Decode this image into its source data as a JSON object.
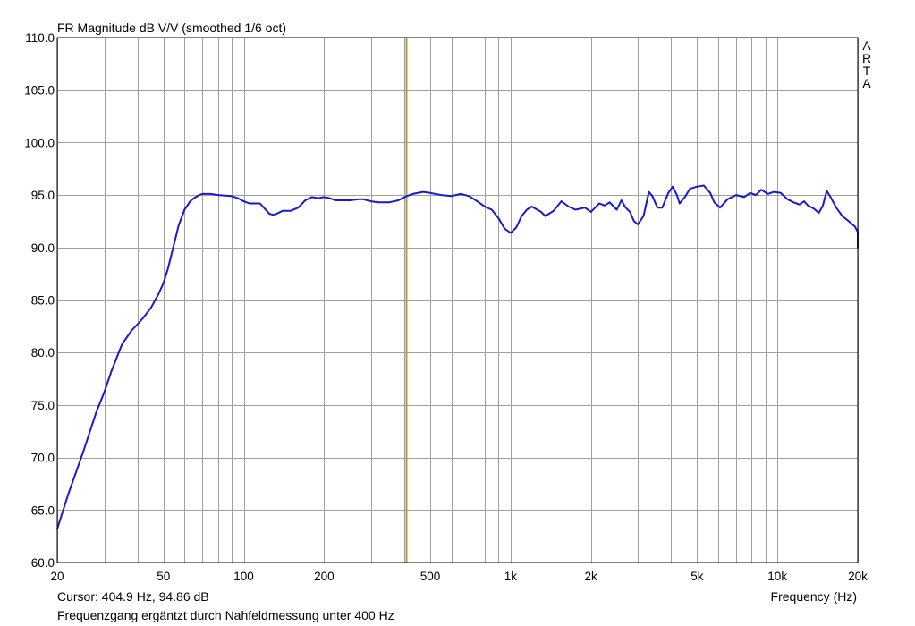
{
  "chart_data": {
    "type": "line",
    "title": "FR Magnitude dB V/V (smoothed 1/6 oct)",
    "xlabel": "Frequency (Hz)",
    "ylabel": "",
    "watermark": "ARTA",
    "x_scale": "log",
    "xlim": [
      20,
      20000
    ],
    "ylim": [
      60,
      110
    ],
    "grid": true,
    "x_ticks": [
      {
        "value": 20,
        "label": "20"
      },
      {
        "value": 50,
        "label": "50"
      },
      {
        "value": 100,
        "label": "100"
      },
      {
        "value": 200,
        "label": "200"
      },
      {
        "value": 500,
        "label": "500"
      },
      {
        "value": 1000,
        "label": "1k"
      },
      {
        "value": 2000,
        "label": "2k"
      },
      {
        "value": 5000,
        "label": "5k"
      },
      {
        "value": 10000,
        "label": "10k"
      },
      {
        "value": 20000,
        "label": "20k"
      }
    ],
    "x_minor_grid": [
      30,
      40,
      60,
      70,
      80,
      90,
      300,
      400,
      600,
      700,
      800,
      900,
      3000,
      4000,
      6000,
      7000,
      8000,
      9000
    ],
    "y_ticks": [
      {
        "value": 60,
        "label": "60.0"
      },
      {
        "value": 65,
        "label": "65.0"
      },
      {
        "value": 70,
        "label": "70.0"
      },
      {
        "value": 75,
        "label": "75.0"
      },
      {
        "value": 80,
        "label": "80.0"
      },
      {
        "value": 85,
        "label": "85.0"
      },
      {
        "value": 90,
        "label": "90.0"
      },
      {
        "value": 95,
        "label": "95.0"
      },
      {
        "value": 100,
        "label": "100.0"
      },
      {
        "value": 105,
        "label": "105.0"
      },
      {
        "value": 110,
        "label": "110.0"
      }
    ],
    "cursor": {
      "x": 404.9,
      "y": 94.86,
      "label": "Cursor: 404.9 Hz, 94.86 dB"
    },
    "note": "Frequenzgang ergäntzt durch Nahfeldmessung unter 400 Hz",
    "colors": {
      "line": "#1a1acc",
      "cursor": "#a8a040",
      "grid": "#a0a0a0"
    },
    "series": [
      {
        "points": [
          [
            20,
            63.2
          ],
          [
            22,
            66.5
          ],
          [
            25,
            70.5
          ],
          [
            28,
            74.3
          ],
          [
            30,
            76.2
          ],
          [
            32,
            78.3
          ],
          [
            35,
            80.8
          ],
          [
            38,
            82.1
          ],
          [
            40,
            82.7
          ],
          [
            42,
            83.3
          ],
          [
            45,
            84.3
          ],
          [
            48,
            85.6
          ],
          [
            50,
            86.6
          ],
          [
            52,
            88.0
          ],
          [
            55,
            90.5
          ],
          [
            57,
            92.1
          ],
          [
            60,
            93.6
          ],
          [
            63,
            94.4
          ],
          [
            65,
            94.7
          ],
          [
            68,
            95.0
          ],
          [
            70,
            95.1
          ],
          [
            75,
            95.1
          ],
          [
            80,
            95.0
          ],
          [
            90,
            94.9
          ],
          [
            95,
            94.7
          ],
          [
            100,
            94.4
          ],
          [
            105,
            94.2
          ],
          [
            110,
            94.2
          ],
          [
            115,
            94.2
          ],
          [
            120,
            93.7
          ],
          [
            125,
            93.2
          ],
          [
            130,
            93.1
          ],
          [
            140,
            93.5
          ],
          [
            150,
            93.5
          ],
          [
            160,
            93.8
          ],
          [
            170,
            94.5
          ],
          [
            180,
            94.8
          ],
          [
            190,
            94.7
          ],
          [
            200,
            94.8
          ],
          [
            210,
            94.7
          ],
          [
            220,
            94.5
          ],
          [
            250,
            94.5
          ],
          [
            270,
            94.6
          ],
          [
            280,
            94.6
          ],
          [
            300,
            94.4
          ],
          [
            320,
            94.3
          ],
          [
            350,
            94.3
          ],
          [
            380,
            94.5
          ],
          [
            404.9,
            94.86
          ],
          [
            430,
            95.1
          ],
          [
            470,
            95.3
          ],
          [
            500,
            95.2
          ],
          [
            550,
            95.0
          ],
          [
            600,
            94.9
          ],
          [
            650,
            95.1
          ],
          [
            700,
            94.9
          ],
          [
            750,
            94.4
          ],
          [
            800,
            93.9
          ],
          [
            850,
            93.6
          ],
          [
            900,
            92.8
          ],
          [
            950,
            91.8
          ],
          [
            1000,
            91.4
          ],
          [
            1050,
            91.9
          ],
          [
            1100,
            93.0
          ],
          [
            1150,
            93.6
          ],
          [
            1200,
            93.9
          ],
          [
            1300,
            93.4
          ],
          [
            1350,
            93.0
          ],
          [
            1450,
            93.5
          ],
          [
            1550,
            94.4
          ],
          [
            1650,
            93.9
          ],
          [
            1750,
            93.6
          ],
          [
            1900,
            93.8
          ],
          [
            2000,
            93.4
          ],
          [
            2150,
            94.2
          ],
          [
            2250,
            94.0
          ],
          [
            2350,
            94.3
          ],
          [
            2500,
            93.6
          ],
          [
            2600,
            94.5
          ],
          [
            2700,
            93.8
          ],
          [
            2800,
            93.4
          ],
          [
            2900,
            92.5
          ],
          [
            3000,
            92.2
          ],
          [
            3150,
            93.0
          ],
          [
            3300,
            95.3
          ],
          [
            3400,
            94.9
          ],
          [
            3550,
            93.8
          ],
          [
            3700,
            93.8
          ],
          [
            3900,
            95.2
          ],
          [
            4050,
            95.8
          ],
          [
            4200,
            95.0
          ],
          [
            4300,
            94.2
          ],
          [
            4500,
            94.8
          ],
          [
            4700,
            95.6
          ],
          [
            5000,
            95.8
          ],
          [
            5300,
            95.9
          ],
          [
            5600,
            95.2
          ],
          [
            5800,
            94.3
          ],
          [
            6100,
            93.8
          ],
          [
            6500,
            94.6
          ],
          [
            7000,
            95.0
          ],
          [
            7500,
            94.8
          ],
          [
            7900,
            95.2
          ],
          [
            8300,
            95.0
          ],
          [
            8700,
            95.5
          ],
          [
            9200,
            95.1
          ],
          [
            9700,
            95.3
          ],
          [
            10300,
            95.2
          ],
          [
            10900,
            94.6
          ],
          [
            11500,
            94.3
          ],
          [
            12100,
            94.1
          ],
          [
            12600,
            94.4
          ],
          [
            13000,
            94.0
          ],
          [
            13700,
            93.7
          ],
          [
            14300,
            93.3
          ],
          [
            14800,
            94.0
          ],
          [
            15300,
            95.4
          ],
          [
            15900,
            94.7
          ],
          [
            16600,
            93.8
          ],
          [
            17500,
            93.0
          ],
          [
            18500,
            92.5
          ],
          [
            19500,
            92.0
          ],
          [
            20500,
            91.5
          ],
          [
            21000,
            91.2
          ],
          [
            21600,
            90.0
          ]
        ]
      }
    ]
  }
}
